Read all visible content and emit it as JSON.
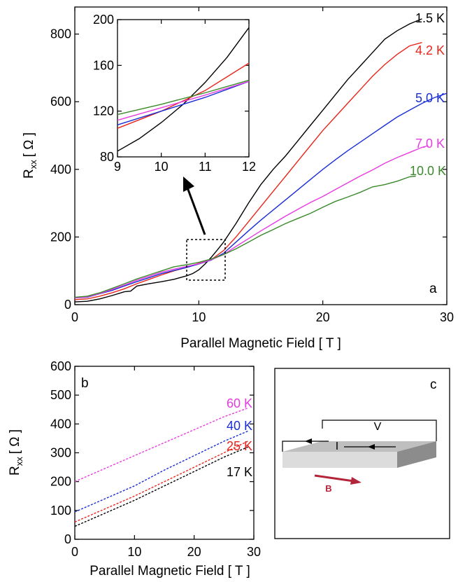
{
  "chart_data": [
    {
      "panel": "a",
      "type": "line",
      "xlabel": "Parallel Magnetic Field [ T ]",
      "ylabel": "R",
      "ylabel_sub": "xx",
      "ylabel_unit": "[ Ω ]",
      "xlim": [
        0,
        30
      ],
      "ylim": [
        0,
        880
      ],
      "xticks": [
        "0",
        "10",
        "20",
        "30"
      ],
      "yticks": [
        "0",
        "200",
        "400",
        "600",
        "800"
      ],
      "series": [
        {
          "name": "1.5 K",
          "color": "#000000",
          "x": [
            0,
            1,
            2,
            3,
            4,
            4.5,
            5,
            6,
            7,
            8,
            9,
            9.5,
            10,
            10.5,
            11,
            11.5,
            12,
            13,
            14,
            15,
            16,
            17,
            18,
            19,
            20,
            21,
            22,
            23,
            24,
            25,
            26,
            27,
            28
          ],
          "y": [
            8,
            10,
            17,
            27,
            38,
            40,
            55,
            62,
            68,
            75,
            85,
            92,
            103,
            120,
            140,
            162,
            185,
            240,
            300,
            355,
            400,
            440,
            485,
            530,
            575,
            620,
            665,
            705,
            745,
            785,
            810,
            830,
            845
          ]
        },
        {
          "name": "4.2 K",
          "color": "#e8261b",
          "x": [
            0,
            1,
            2,
            3,
            4,
            5,
            6,
            7,
            8,
            9,
            10,
            11,
            12,
            13,
            14,
            15,
            16,
            17,
            18,
            19,
            20,
            21,
            22,
            23,
            24,
            25,
            26,
            27,
            28
          ],
          "y": [
            15,
            17,
            25,
            35,
            47,
            62,
            75,
            88,
            100,
            110,
            122,
            133,
            160,
            200,
            245,
            290,
            335,
            380,
            425,
            470,
            515,
            555,
            595,
            635,
            675,
            710,
            740,
            765,
            775
          ]
        },
        {
          "name": "5.0 K",
          "color": "#1a2ed6",
          "x": [
            0,
            1,
            2,
            3,
            4,
            5,
            6,
            7,
            8,
            9,
            10,
            11,
            12,
            13,
            14,
            15,
            16,
            17,
            18,
            19,
            20,
            21,
            22,
            23,
            24,
            25,
            26,
            27,
            28,
            29,
            30
          ],
          "y": [
            20,
            22,
            32,
            42,
            55,
            68,
            80,
            92,
            101,
            110,
            120,
            132,
            152,
            185,
            218,
            250,
            280,
            310,
            340,
            370,
            400,
            428,
            455,
            480,
            505,
            530,
            555,
            575,
            595,
            612,
            625
          ]
        },
        {
          "name": "7.0 K",
          "color": "#e63ce0",
          "x": [
            0,
            1,
            2,
            3,
            4,
            5,
            6,
            7,
            8,
            9,
            10,
            11,
            12,
            13,
            14,
            15,
            16,
            17,
            18,
            19,
            20,
            21,
            22,
            23,
            24,
            25,
            26,
            27,
            28,
            28.5
          ],
          "y": [
            20,
            23,
            33,
            45,
            58,
            72,
            84,
            96,
            105,
            113,
            121,
            133,
            148,
            172,
            195,
            218,
            240,
            262,
            282,
            302,
            320,
            340,
            360,
            380,
            398,
            418,
            435,
            450,
            465,
            470
          ]
        },
        {
          "name": "10.0 K",
          "color": "#3a8a2a",
          "x": [
            0,
            1,
            2,
            3,
            4,
            5,
            6,
            7,
            8,
            9,
            10,
            11,
            12,
            13,
            14,
            15,
            16,
            17,
            18,
            19,
            20,
            21,
            22,
            23,
            24,
            25,
            26,
            27,
            27.5
          ],
          "y": [
            22,
            25,
            35,
            48,
            62,
            76,
            88,
            100,
            112,
            118,
            125,
            135,
            148,
            165,
            185,
            205,
            222,
            240,
            255,
            270,
            288,
            305,
            318,
            332,
            348,
            355,
            365,
            378,
            380
          ]
        }
      ],
      "inset": {
        "xlim": [
          9,
          12
        ],
        "ylim": [
          80,
          200
        ],
        "xticks": [
          "9",
          "10",
          "11",
          "12"
        ],
        "yticks": [
          "80",
          "120",
          "160",
          "200"
        ],
        "series": [
          {
            "name": "1.5 K",
            "color": "#000000",
            "x": [
              9,
              9.5,
              10,
              10.5,
              11,
              11.5,
              12
            ],
            "y": [
              85,
              96,
              110,
              126,
              145,
              167,
              193
            ]
          },
          {
            "name": "4.2 K",
            "color": "#e8261b",
            "x": [
              9,
              10,
              11,
              12
            ],
            "y": [
              105,
              120,
              138,
              162
            ]
          },
          {
            "name": "5.0 K",
            "color": "#1a2ed6",
            "x": [
              9,
              10,
              11,
              12
            ],
            "y": [
              108,
              120,
              132,
              146
            ]
          },
          {
            "name": "7.0 K",
            "color": "#e63ce0",
            "x": [
              9,
              10,
              11,
              12
            ],
            "y": [
              112,
              123,
              134,
              146
            ]
          },
          {
            "name": "10.0 K",
            "color": "#3a8a2a",
            "x": [
              9,
              10,
              11,
              12
            ],
            "y": [
              117,
              126,
              136,
              147
            ]
          }
        ]
      }
    },
    {
      "panel": "b",
      "type": "line",
      "xlabel": "Parallel Magnetic Field [ T ]",
      "ylabel": "R",
      "ylabel_sub": "xx",
      "ylabel_unit": "[ Ω ]",
      "xlim": [
        0,
        30
      ],
      "ylim": [
        0,
        600
      ],
      "xticks": [
        "0",
        "10",
        "20",
        "30"
      ],
      "yticks": [
        "0",
        "100",
        "200",
        "300",
        "400",
        "500",
        "600"
      ],
      "line_style": "dashed",
      "series": [
        {
          "name": "60 K",
          "color": "#e63ce0",
          "x": [
            0,
            5,
            10,
            15,
            20,
            25,
            29
          ],
          "y": [
            200,
            245,
            290,
            335,
            380,
            425,
            455
          ]
        },
        {
          "name": "40 K",
          "color": "#1a2ed6",
          "x": [
            0,
            5,
            10,
            15,
            20,
            25,
            29
          ],
          "y": [
            95,
            140,
            185,
            240,
            290,
            340,
            375
          ]
        },
        {
          "name": "25 K",
          "color": "#e8261b",
          "x": [
            0,
            5,
            10,
            15,
            20,
            25,
            29
          ],
          "y": [
            60,
            105,
            150,
            200,
            250,
            300,
            340
          ]
        },
        {
          "name": "17 K",
          "color": "#000000",
          "x": [
            0,
            5,
            10,
            15,
            20,
            25,
            29
          ],
          "y": [
            45,
            90,
            135,
            185,
            235,
            285,
            320
          ]
        }
      ]
    }
  ],
  "panel_labels": {
    "a": "a",
    "b": "b",
    "c": "c"
  },
  "diagram": {
    "voltage_label": "V",
    "current_label": "I",
    "field_label": "B",
    "field_color": "#b3253a"
  }
}
